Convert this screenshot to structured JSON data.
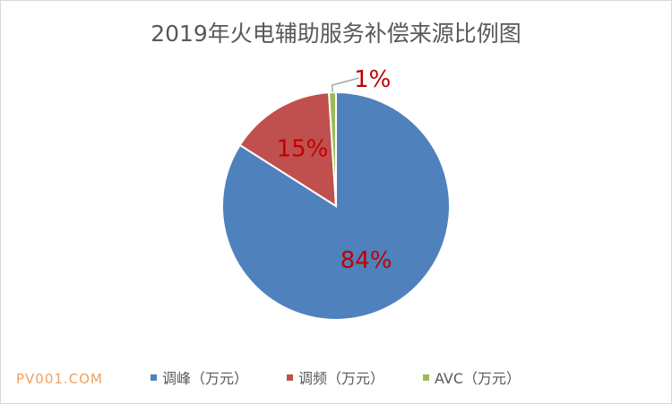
{
  "watermark": "PV001.COM",
  "chart_data": {
    "type": "pie",
    "title": "2019年火电辅助服务补偿来源比例图",
    "slices": [
      {
        "name": "调峰（万元）",
        "value": 84,
        "label": "84%",
        "color": "#4f81bd",
        "label_color": "#c00000"
      },
      {
        "name": "调频（万元）",
        "value": 15,
        "label": "15%",
        "color": "#c0504d",
        "label_color": "#c00000"
      },
      {
        "name": "AVC（万元）",
        "value": 1,
        "label": "1%",
        "color": "#9bbb59",
        "label_color": "#c00000"
      }
    ],
    "legend_position": "bottom"
  }
}
